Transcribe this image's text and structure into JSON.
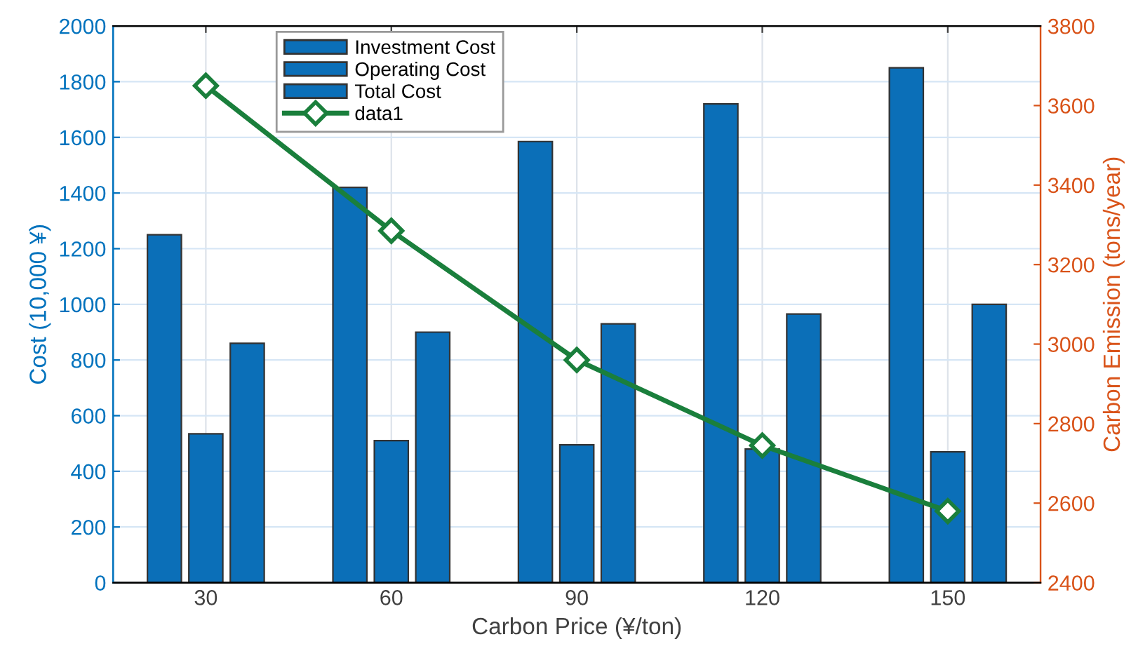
{
  "chart_data": {
    "type": "bar",
    "xlabel": "Carbon Price (¥/ton)",
    "ylabel": "Cost (10,000 ¥)",
    "y2label": "Carbon Emission (tons/year)",
    "x": [
      30,
      60,
      90,
      120,
      150
    ],
    "series": [
      {
        "name": "Investment Cost",
        "color": "#0b6fb8",
        "values": [
          1250,
          1420,
          1585,
          1720,
          1850
        ]
      },
      {
        "name": "Operating Cost",
        "color": "#0b6fb8",
        "values": [
          535,
          510,
          495,
          480,
          470
        ]
      },
      {
        "name": "Total Cost",
        "color": "#0b6fb8",
        "values": [
          860,
          900,
          930,
          965,
          1000
        ]
      },
      {
        "name": "data1",
        "type": "line",
        "axis": "y2",
        "color": "#1a7f3c",
        "marker": "diamond",
        "line_style": "solid",
        "values": [
          3650,
          3285,
          2960,
          2745,
          2580
        ]
      }
    ],
    "xlim": [
      15,
      165
    ],
    "xticks": [
      30,
      60,
      90,
      120,
      150
    ],
    "ylim": [
      0,
      2000
    ],
    "yticks": [
      0,
      200,
      400,
      600,
      800,
      1000,
      1200,
      1400,
      1600,
      1800,
      2000
    ],
    "y2lim": [
      2400,
      3800
    ],
    "y2ticks": [
      2400,
      2600,
      2800,
      3000,
      3200,
      3400,
      3600,
      3800
    ],
    "grid": true,
    "legend": "top"
  }
}
